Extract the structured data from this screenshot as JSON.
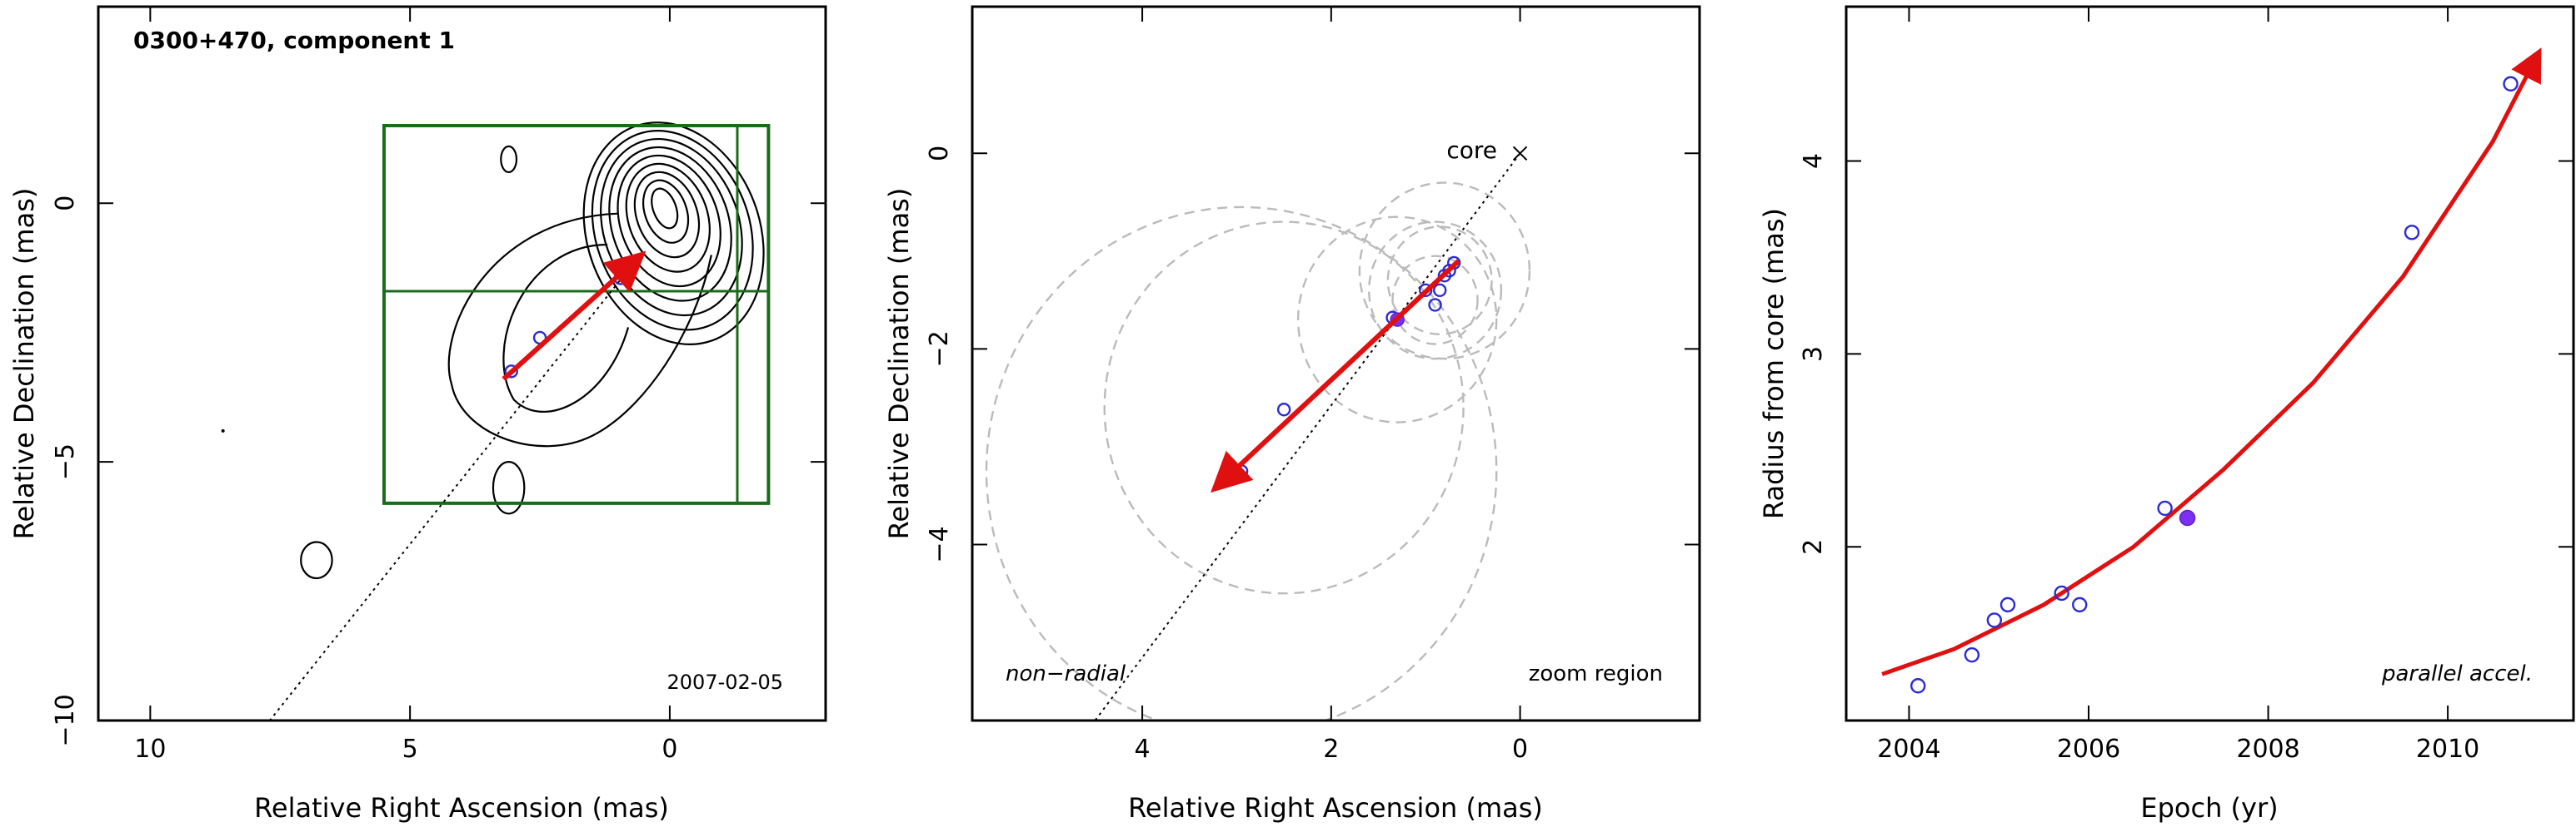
{
  "chart_data": [
    {
      "type": "scatter",
      "title": "0300+470, component 1",
      "xlabel": "Relative Right Ascension (mas)",
      "ylabel": "Relative Declination (mas)",
      "xlim": [
        11,
        -3
      ],
      "ylim": [
        -10,
        3.8
      ],
      "xticks": [
        10,
        5,
        0
      ],
      "yticks": [
        0,
        -5,
        -10
      ],
      "annotations": [
        "2007-02-05"
      ],
      "points": [
        {
          "x": 0.75,
          "y": -1.15
        },
        {
          "x": 0.85,
          "y": -1.3
        },
        {
          "x": 0.95,
          "y": -1.45
        },
        {
          "x": 2.5,
          "y": -2.6
        },
        {
          "x": 3.05,
          "y": -3.25
        }
      ],
      "velocity_arrow": {
        "from": [
          3.2,
          -3.4
        ],
        "to": [
          0.6,
          -1.05
        ]
      },
      "trajectory": {
        "from": [
          0.65,
          -1.1
        ],
        "to": [
          7.7,
          -10
        ]
      },
      "zoom_box": {
        "ra": [
          5.5,
          -1.9
        ],
        "dec": [
          -5.8,
          1.5
        ],
        "divider_ra": -1.3,
        "divider_dec": -1.7
      },
      "contours": [
        {
          "center": [
            0.1,
            -0.1
          ],
          "radii": [
            0.22,
            0.4
          ],
          "tilt": -20,
          "step": 0.18,
          "count": 9
        },
        {
          "center": [
            3.1,
            0.85
          ],
          "radii": [
            0.15,
            0.25
          ],
          "tilt": 0
        },
        {
          "center": [
            6.8,
            -6.9
          ],
          "radii": [
            0.3,
            0.35
          ],
          "tilt": 0
        },
        {
          "center": [
            3.1,
            -5.5
          ],
          "radii": [
            0.3,
            0.5
          ],
          "tilt": 0
        }
      ]
    },
    {
      "type": "scatter",
      "xlabel": "Relative Right Ascension (mas)",
      "ylabel": "Relative Declination (mas)",
      "xlim": [
        5.8,
        -1.9
      ],
      "ylim": [
        -5.8,
        1.5
      ],
      "xticks": [
        4,
        2,
        0
      ],
      "yticks": [
        0,
        -2,
        -4
      ],
      "annotations": [
        "core",
        "non−radial",
        "zoom region"
      ],
      "core": {
        "x": 0,
        "y": 0
      },
      "points": [
        {
          "x": 0.7,
          "y": -1.12
        },
        {
          "x": 0.75,
          "y": -1.2
        },
        {
          "x": 0.8,
          "y": -1.25
        },
        {
          "x": 0.85,
          "y": -1.4
        },
        {
          "x": 0.9,
          "y": -1.55
        },
        {
          "x": 1.0,
          "y": -1.4
        },
        {
          "x": 1.35,
          "y": -1.68
        },
        {
          "x": 2.5,
          "y": -2.62
        },
        {
          "x": 2.95,
          "y": -3.25
        }
      ],
      "filled_point": {
        "x": 1.3,
        "y": -1.7
      },
      "error_circles": [
        {
          "x": 0.85,
          "y": -1.3,
          "r": 0.55
        },
        {
          "x": 0.9,
          "y": -1.4,
          "r": 0.7
        },
        {
          "x": 0.8,
          "y": -1.2,
          "r": 0.9
        },
        {
          "x": 0.9,
          "y": -1.5,
          "r": 0.45
        },
        {
          "x": 1.3,
          "y": -1.7,
          "r": 1.05
        },
        {
          "x": 2.5,
          "y": -2.6,
          "r": 1.9
        },
        {
          "x": 2.95,
          "y": -3.25,
          "r": 2.7
        }
      ],
      "velocity_arrow": {
        "from": [
          0.65,
          -1.1
        ],
        "to": [
          3.2,
          -3.4
        ]
      },
      "trajectory": {
        "from": [
          0,
          0
        ],
        "to": [
          4.5,
          -5.8
        ]
      }
    },
    {
      "type": "line",
      "xlabel": "Epoch (yr)",
      "ylabel": "Radius from core (mas)",
      "xlim": [
        2003.3,
        2011.4
      ],
      "ylim": [
        1.1,
        4.8
      ],
      "xticks": [
        2004,
        2006,
        2008,
        2010
      ],
      "yticks": [
        2,
        3,
        4
      ],
      "annotations": [
        "parallel accel."
      ],
      "points": [
        {
          "x": 2004.1,
          "y": 1.28
        },
        {
          "x": 2004.7,
          "y": 1.44
        },
        {
          "x": 2004.95,
          "y": 1.62
        },
        {
          "x": 2005.1,
          "y": 1.7
        },
        {
          "x": 2005.7,
          "y": 1.76
        },
        {
          "x": 2005.9,
          "y": 1.7
        },
        {
          "x": 2006.85,
          "y": 2.2
        },
        {
          "x": 2009.6,
          "y": 3.63
        },
        {
          "x": 2010.7,
          "y": 4.4
        }
      ],
      "filled_point": {
        "x": 2007.1,
        "y": 2.15
      },
      "fit_curve": {
        "x": [
          2003.7,
          2004.5,
          2005.5,
          2006.5,
          2007.5,
          2008.5,
          2009.5,
          2010.5,
          2011.0
        ],
        "y": [
          1.34,
          1.47,
          1.7,
          2.0,
          2.4,
          2.85,
          3.4,
          4.1,
          4.55
        ]
      }
    }
  ]
}
